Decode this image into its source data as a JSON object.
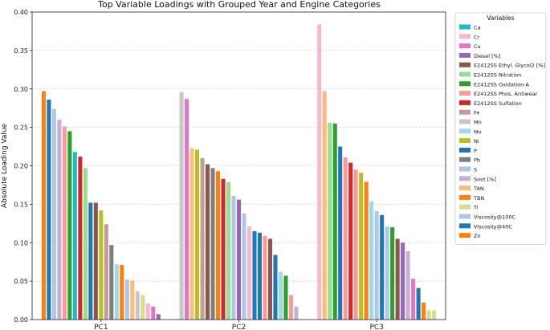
{
  "chart_data": {
    "type": "bar",
    "title": "Top Variable Loadings with Grouped Year and Engine Categories",
    "xlabel": "",
    "ylabel": "Absolute Loading Value",
    "ylim": [
      0,
      0.4
    ],
    "yticks": [
      "0.00",
      "0.05",
      "0.10",
      "0.15",
      "0.20",
      "0.25",
      "0.30",
      "0.35",
      "0.40"
    ],
    "grid": "horizontal dashed",
    "legend_title": "Variables",
    "legend_position": "right, outside",
    "categories": [
      "PC1",
      "PC2",
      "PC3"
    ],
    "series": [
      {
        "name": "Ca",
        "color": "#17becf"
      },
      {
        "name": "Cr",
        "color": "#f7b6d2"
      },
      {
        "name": "Cu",
        "color": "#e377c2"
      },
      {
        "name": "Diesel [%]",
        "color": "#9467bd"
      },
      {
        "name": "E2412SS Ethyl. Glycol2 [%]",
        "color": "#8c564b"
      },
      {
        "name": "E2412SS Nitration",
        "color": "#98df8a"
      },
      {
        "name": "E2412SS Oxidation-A",
        "color": "#2ca02c"
      },
      {
        "name": "E2412SS Phos. Antiwear",
        "color": "#ff9896"
      },
      {
        "name": "E2412SS Sulfation",
        "color": "#d62728"
      },
      {
        "name": "Fe",
        "color": "#c49c94"
      },
      {
        "name": "Mn",
        "color": "#c7c7c7"
      },
      {
        "name": "Mo",
        "color": "#9edae5"
      },
      {
        "name": "Ni",
        "color": "#bcbd22"
      },
      {
        "name": "P",
        "color": "#1f77b4"
      },
      {
        "name": "Pb",
        "color": "#7f7f7f"
      },
      {
        "name": "S",
        "color": "#aec7e8"
      },
      {
        "name": "Soot [%]",
        "color": "#c5b0d5"
      },
      {
        "name": "TAN",
        "color": "#ffbb78"
      },
      {
        "name": "TBN",
        "color": "#ff7f0e"
      },
      {
        "name": "Ti",
        "color": "#dbdb8d"
      },
      {
        "name": "Viscosity@100C",
        "color": "#aec7e8"
      },
      {
        "name": "Viscosity@40C",
        "color": "#1f77b4"
      },
      {
        "name": "Zn",
        "color": "#ff7f0e"
      }
    ],
    "groups": [
      {
        "category": "PC1",
        "bars": [
          {
            "variable": "Zn",
            "value": 0.297
          },
          {
            "variable": "Viscosity@40C",
            "value": 0.286
          },
          {
            "variable": "Viscosity@100C",
            "value": 0.274
          },
          {
            "variable": "Soot [%]",
            "value": 0.26
          },
          {
            "variable": "E2412SS Phos. Antiwear",
            "value": 0.251
          },
          {
            "variable": "E2412SS Oxidation-A",
            "value": 0.245
          },
          {
            "variable": "Ca",
            "value": 0.218
          },
          {
            "variable": "E2412SS Sulfation",
            "value": 0.212
          },
          {
            "variable": "E2412SS Nitration",
            "value": 0.197
          },
          {
            "variable": "P",
            "value": 0.152
          },
          {
            "variable": "E2412SS Ethyl. Glycol2 [%]",
            "value": 0.152
          },
          {
            "variable": "Ni",
            "value": 0.142
          },
          {
            "variable": "Fe",
            "value": 0.124
          },
          {
            "variable": "Pb",
            "value": 0.097
          },
          {
            "variable": "Mo",
            "value": 0.072
          },
          {
            "variable": "TBN",
            "value": 0.071
          },
          {
            "variable": "S",
            "value": 0.052
          },
          {
            "variable": "TAN",
            "value": 0.051
          },
          {
            "variable": "Mn",
            "value": 0.037
          },
          {
            "variable": "Ti",
            "value": 0.032
          },
          {
            "variable": "Cr",
            "value": 0.021
          },
          {
            "variable": "Cu",
            "value": 0.017
          },
          {
            "variable": "Diesel [%]",
            "value": 0.007
          }
        ]
      },
      {
        "category": "PC2",
        "bars": [
          {
            "variable": "Mn",
            "value": 0.296
          },
          {
            "variable": "Cu",
            "value": 0.287
          },
          {
            "variable": "TAN",
            "value": 0.223
          },
          {
            "variable": "Ni",
            "value": 0.221
          },
          {
            "variable": "Fe",
            "value": 0.21
          },
          {
            "variable": "E2412SS Ethyl. Glycol2 [%]",
            "value": 0.202
          },
          {
            "variable": "Pb",
            "value": 0.197
          },
          {
            "variable": "TBN",
            "value": 0.193
          },
          {
            "variable": "E2412SS Sulfation",
            "value": 0.183
          },
          {
            "variable": "E2412SS Nitration",
            "value": 0.179
          },
          {
            "variable": "Viscosity@100C",
            "value": 0.161
          },
          {
            "variable": "Diesel [%]",
            "value": 0.156
          },
          {
            "variable": "S",
            "value": 0.138
          },
          {
            "variable": "Cr",
            "value": 0.121
          },
          {
            "variable": "P",
            "value": 0.115
          },
          {
            "variable": "Viscosity@40C",
            "value": 0.113
          },
          {
            "variable": "E2412SS Phos. Antiwear",
            "value": 0.109
          },
          {
            "variable": "E2412SS Ethyl. Glycol2 [%]",
            "value": 0.105
          },
          {
            "variable": "Viscosity@40C",
            "value": 0.084
          },
          {
            "variable": "Mo",
            "value": 0.062
          },
          {
            "variable": "E2412SS Oxidation-A",
            "value": 0.057
          },
          {
            "variable": "E2412SS Phos. Antiwear",
            "value": 0.032
          },
          {
            "variable": "Soot [%]",
            "value": 0.017
          }
        ]
      },
      {
        "category": "PC3",
        "bars": [
          {
            "variable": "Cr",
            "value": 0.384
          },
          {
            "variable": "TAN",
            "value": 0.297
          },
          {
            "variable": "E2412SS Nitration",
            "value": 0.256
          },
          {
            "variable": "E2412SS Oxidation-A",
            "value": 0.255
          },
          {
            "variable": "Viscosity@40C",
            "value": 0.225
          },
          {
            "variable": "E2412SS Phos. Antiwear",
            "value": 0.211
          },
          {
            "variable": "E2412SS Sulfation",
            "value": 0.204
          },
          {
            "variable": "E2412SS Phos. Antiwear",
            "value": 0.195
          },
          {
            "variable": "Ni",
            "value": 0.191
          },
          {
            "variable": "TBN",
            "value": 0.179
          },
          {
            "variable": "Mo",
            "value": 0.154
          },
          {
            "variable": "Viscosity@100C",
            "value": 0.141
          },
          {
            "variable": "P",
            "value": 0.136
          },
          {
            "variable": "S",
            "value": 0.121
          },
          {
            "variable": "E2412SS Oxidation-A",
            "value": 0.12
          },
          {
            "variable": "E2412SS Ethyl. Glycol2 [%]",
            "value": 0.105
          },
          {
            "variable": "Diesel [%]",
            "value": 0.1
          },
          {
            "variable": "Soot [%]",
            "value": 0.089
          },
          {
            "variable": "Cu",
            "value": 0.053
          },
          {
            "variable": "Viscosity@40C",
            "value": 0.041
          },
          {
            "variable": "TBN",
            "value": 0.022
          },
          {
            "variable": "Ti",
            "value": 0.012
          },
          {
            "variable": "Ti",
            "value": 0.012
          }
        ]
      }
    ]
  }
}
